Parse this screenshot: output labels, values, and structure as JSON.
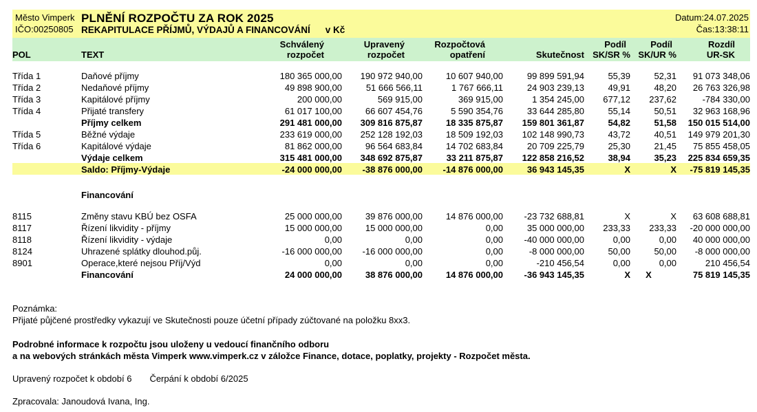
{
  "header": {
    "org_name": "Město Vimperk",
    "org_id": "IČO:00250805",
    "title": "PLNĚNÍ ROZPOČTU ZA ROK 2025",
    "subtitle": "REKAPITULACE PŘÍJMŮ, VÝDAJŮ A FINANCOVÁNÍ",
    "unit": "v Kč",
    "date": "Datum:24.07.2025",
    "time": "Čas:13:38:11"
  },
  "colors": {
    "band_yellow": "#fbfb9b",
    "band_green": "#cdf2cd",
    "saldo_highlight": "#fbfb9b"
  },
  "table": {
    "header_row1": [
      "",
      "",
      "Schválený",
      "Upravený",
      "Rozpočtová",
      "",
      "Podíl",
      "Podíl",
      "Rozdíl"
    ],
    "header_row2": [
      "POL",
      "TEXT",
      "rozpočet",
      "rozpočet",
      "opatření",
      "Skutečnost",
      "SK/SR %",
      "SK/UR %",
      "UR-SK"
    ],
    "rows": [
      {
        "style": "spacer",
        "h": 12
      },
      {
        "style": "normal",
        "pol": "Třída 1",
        "text": "Daňové příjmy",
        "cells": [
          "180 365 000,00",
          "190 972 940,00",
          "10 607 940,00",
          "99 899 591,94",
          "55,39",
          "52,31",
          "91 073 348,06"
        ]
      },
      {
        "style": "normal",
        "pol": "Třída 2",
        "text": "Nedaňové příjmy",
        "cells": [
          "49 898 900,00",
          "51 666 566,11",
          "1 767 666,11",
          "24 903 239,13",
          "49,91",
          "48,20",
          "26 763 326,98"
        ]
      },
      {
        "style": "normal",
        "pol": "Třída 3",
        "text": "Kapitálové příjmy",
        "cells": [
          "200 000,00",
          "569 915,00",
          "369 915,00",
          "1 354 245,00",
          "677,12",
          "237,62",
          "-784 330,00"
        ]
      },
      {
        "style": "normal",
        "pol": "Třída 4",
        "text": "Přijaté transfery",
        "cells": [
          "61 017 100,00",
          "66 607 454,76",
          "5 590 354,76",
          "33 644 285,80",
          "55,14",
          "50,51",
          "32 963 168,96"
        ]
      },
      {
        "style": "total",
        "pol": "",
        "text": "Příjmy celkem",
        "cells": [
          "291 481 000,00",
          "309 816 875,87",
          "18 335 875,87",
          "159 801 361,87",
          "54,82",
          "51,58",
          "150 015 514,00"
        ]
      },
      {
        "style": "normal",
        "pol": "Třída 5",
        "text": "Běžné výdaje",
        "cells": [
          "233 619 000,00",
          "252 128 192,03",
          "18 509 192,03",
          "102 148 990,73",
          "43,72",
          "40,51",
          "149 979 201,30"
        ]
      },
      {
        "style": "normal",
        "pol": "Třída 6",
        "text": "Kapitálové výdaje",
        "cells": [
          "81 862 000,00",
          "96 564 683,84",
          "14 702 683,84",
          "20 709 225,79",
          "25,30",
          "21,45",
          "75 855 458,05"
        ]
      },
      {
        "style": "total",
        "pol": "",
        "text": "Výdaje celkem",
        "cells": [
          "315 481 000,00",
          "348 692 875,87",
          "33 211 875,87",
          "122 858 216,52",
          "38,94",
          "35,23",
          "225 834 659,35"
        ]
      },
      {
        "style": "saldo",
        "pol": "",
        "text": "Saldo: Příjmy-Výdaje",
        "cells": [
          "-24 000 000,00",
          "-38 876 000,00",
          "-14 876 000,00",
          "36 943 145,35",
          "X",
          "X",
          "-75 819 145,35"
        ]
      },
      {
        "style": "spacer",
        "h": 20
      },
      {
        "style": "section",
        "pol": "",
        "text": "Financování",
        "cells": [
          "",
          "",
          "",
          "",
          "",
          "",
          ""
        ]
      },
      {
        "style": "spacer",
        "h": 14
      },
      {
        "style": "normal",
        "pol": "8115",
        "text": "Změny stavu KBÚ bez OSFA",
        "cells": [
          "25 000 000,00",
          "39 876 000,00",
          "14 876 000,00",
          "-23 732 688,81",
          "X",
          "X",
          "63 608 688,81"
        ]
      },
      {
        "style": "normal",
        "pol": "8117",
        "text": "Řízení likvidity - příjmy",
        "cells": [
          "15 000 000,00",
          "15 000 000,00",
          "0,00",
          "35 000 000,00",
          "233,33",
          "233,33",
          "-20 000 000,00"
        ]
      },
      {
        "style": "normal",
        "pol": "8118",
        "text": "Řízení likvidity - výdaje",
        "cells": [
          "0,00",
          "0,00",
          "0,00",
          "-40 000 000,00",
          "0,00",
          "0,00",
          "40 000 000,00"
        ]
      },
      {
        "style": "normal",
        "pol": "8124",
        "text": "Uhrazené splátky dlouhod.půj.",
        "cells": [
          "-16 000 000,00",
          "-16 000 000,00",
          "0,00",
          "-8 000 000,00",
          "50,00",
          "50,00",
          "-8 000 000,00"
        ]
      },
      {
        "style": "normal",
        "pol": "8901",
        "text": "Operace,které nejsou Příj/Výd",
        "cells": [
          "0,00",
          "0,00",
          "0,00",
          "-210 456,54",
          "0,00",
          "0,00",
          "210 456,54"
        ]
      },
      {
        "style": "fin-total",
        "pol": "",
        "text": "Financování",
        "cells": [
          "24 000 000,00",
          "38 876 000,00",
          "14 876 000,00",
          "-36 943 145,35",
          "X",
          "X",
          "75 819 145,35"
        ]
      }
    ]
  },
  "footer": {
    "note_label": "Poznámka:",
    "note_text": "Přijaté půjčené prostředky vykazují ve Skutečnosti pouze účetní případy zúčtované na položku 8xx3.",
    "info_line1": "Podrobné informace k rozpočtu jsou uloženy u vedoucí finančního odboru",
    "info_line2": "a na webových stránkách města Vimperk www.vimperk.cz v záložce Finance, dotace, poplatky, projekty - Rozpočet města.",
    "period_line1": "Upravený rozpočet k období 6",
    "period_line2": "Čerpání k období 6/2025",
    "author": "Zpracovala: Janoudová Ivana, Ing."
  }
}
